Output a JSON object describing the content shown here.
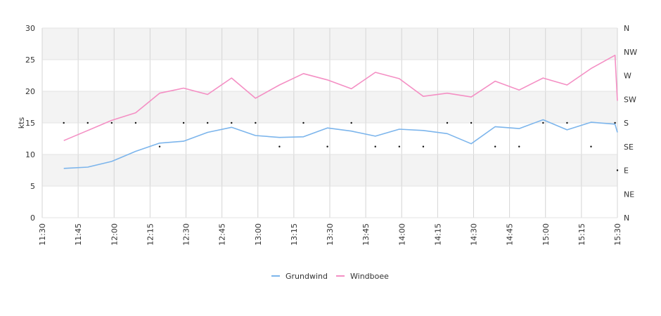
{
  "chart_data": {
    "type": "line",
    "ylabel": "kts",
    "ylim": [
      0,
      30
    ],
    "y_ticks": [
      "0",
      "5",
      "10",
      "15",
      "20",
      "25",
      "30"
    ],
    "x_ticks": [
      "11:30",
      "11:45",
      "12:00",
      "12:15",
      "12:30",
      "12:45",
      "13:00",
      "13:15",
      "13:30",
      "13:45",
      "14:00",
      "14:15",
      "14:30",
      "14:45",
      "15:00",
      "15:15",
      "15:30"
    ],
    "xlim": [
      "11:30",
      "15:30"
    ],
    "direction_ticks": [
      "N",
      "NE",
      "E",
      "SE",
      "S",
      "SW",
      "W",
      "NW",
      "N"
    ],
    "grid": true,
    "legend_position": "bottom",
    "x": [
      "11:39",
      "11:49",
      "11:59",
      "12:09",
      "12:19",
      "12:29",
      "12:39",
      "12:49",
      "12:59",
      "13:09",
      "13:19",
      "13:29",
      "13:39",
      "13:49",
      "13:59",
      "14:09",
      "14:19",
      "14:29",
      "14:39",
      "14:49",
      "14:59",
      "15:09",
      "15:19",
      "15:29",
      "15:30"
    ],
    "series": [
      {
        "name": "Grundwind",
        "color": "#7cb5ec",
        "values": [
          7.8,
          8.0,
          8.9,
          10.5,
          11.8,
          12.1,
          13.5,
          14.3,
          13.0,
          12.7,
          12.8,
          14.2,
          13.7,
          12.9,
          14.0,
          13.8,
          13.3,
          11.7,
          14.4,
          14.1,
          15.5,
          13.9,
          15.1,
          14.8,
          13.5
        ]
      },
      {
        "name": "Windboee",
        "color": "#f48fc4",
        "values": [
          12.2,
          13.8,
          15.4,
          16.6,
          19.7,
          20.5,
          19.5,
          22.1,
          18.9,
          21.0,
          22.8,
          21.8,
          20.4,
          23.0,
          22.0,
          19.2,
          19.7,
          19.1,
          21.6,
          20.2,
          22.1,
          21.0,
          23.6,
          25.7,
          18.5
        ]
      }
    ],
    "direction": {
      "label_unit": "compass",
      "values": [
        "S",
        "S",
        "S",
        "S",
        "SE",
        "S",
        "S",
        "S",
        "S",
        "SE",
        "S",
        "SE",
        "S",
        "SE",
        "SE",
        "SE",
        "S",
        "S",
        "SE",
        "SE",
        "S",
        "S",
        "SE",
        "S",
        "E"
      ]
    }
  }
}
